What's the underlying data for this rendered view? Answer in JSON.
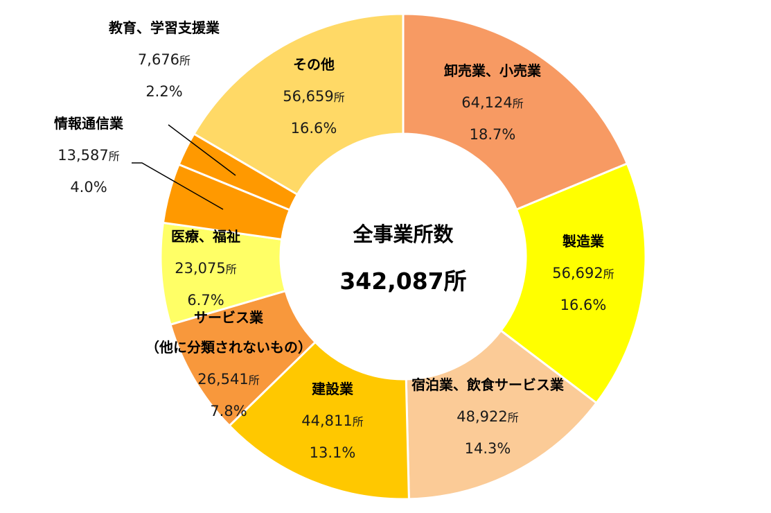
{
  "chart_data": {
    "type": "pie",
    "donut": true,
    "title": "",
    "center_label": "全事業所数",
    "center_value": "342,087",
    "unit": "所",
    "slices": [
      {
        "category": "卸売業、小売業",
        "value": 64124,
        "value_text": "64,124",
        "percent": "18.7%",
        "color": "#F79A63"
      },
      {
        "category": "製造業",
        "value": 56692,
        "value_text": "56,692",
        "percent": "16.6%",
        "color": "#FFFF00"
      },
      {
        "category": "宿泊業、飲食サービス業",
        "value": 48922,
        "value_text": "48,922",
        "percent": "14.3%",
        "color": "#FBCB97"
      },
      {
        "category": "建設業",
        "value": 44811,
        "value_text": "44,811",
        "percent": "13.1%",
        "color": "#FFC800"
      },
      {
        "category": "サービス業",
        "category_line2": "（他に分類されないもの）",
        "value": 26541,
        "value_text": "26,541",
        "percent": "7.8%",
        "color": "#F8983C"
      },
      {
        "category": "医療、福祉",
        "value": 23075,
        "value_text": "23,075",
        "percent": "6.7%",
        "color": "#FFFF66"
      },
      {
        "category": "情報通信業",
        "value": 13587,
        "value_text": "13,587",
        "percent": "4.0%",
        "color": "#FF9900"
      },
      {
        "category": "教育、学習支援業",
        "value": 7676,
        "value_text": "7,676",
        "percent": "2.2%",
        "color": "#FF9900"
      },
      {
        "category": "その他",
        "value": 56659,
        "value_text": "56,659",
        "percent": "16.6%",
        "color": "#FFD966"
      }
    ]
  }
}
